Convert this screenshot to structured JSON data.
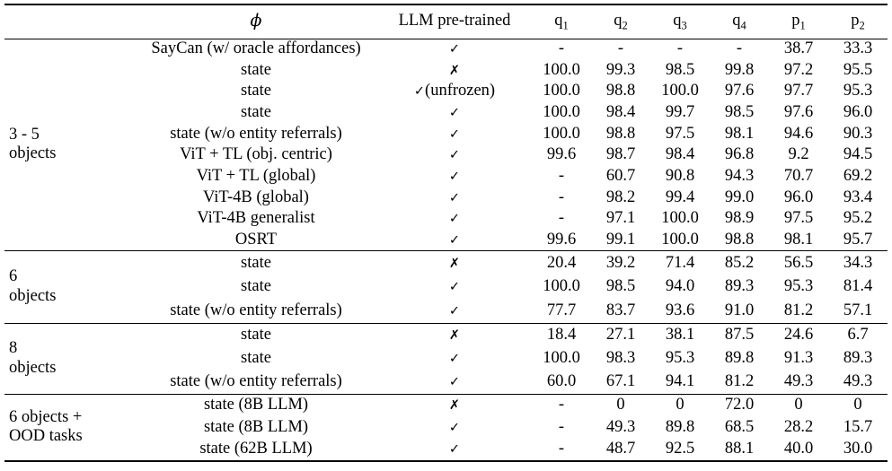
{
  "page": {
    "background": "#ffffff",
    "text_color": "#000000",
    "rule_color": "#000000"
  },
  "table": {
    "header": {
      "group": "",
      "phi": "ϕ",
      "llm": "LLM pre-trained",
      "metrics": [
        {
          "base": "q",
          "sub": "1"
        },
        {
          "base": "q",
          "sub": "2"
        },
        {
          "base": "q",
          "sub": "3"
        },
        {
          "base": "q",
          "sub": "4"
        },
        {
          "base": "p",
          "sub": "1"
        },
        {
          "base": "p",
          "sub": "2"
        }
      ]
    },
    "marks": {
      "check": "✓",
      "cross": "✗"
    },
    "groups": [
      {
        "label_lines": [
          "3 - 5",
          "objects"
        ],
        "rows": [
          {
            "phi": "SayCan (w/ oracle affordances)",
            "llm": "✓",
            "values": [
              "-",
              "-",
              "-",
              "-",
              "38.7",
              "33.3"
            ]
          },
          {
            "phi": "state",
            "llm": "✗",
            "values": [
              "100.0",
              "99.3",
              "98.5",
              "99.8",
              "97.2",
              "95.5"
            ]
          },
          {
            "phi": "state",
            "llm": "✓(unfrozen)",
            "values": [
              "100.0",
              "98.8",
              "100.0",
              "97.6",
              "97.7",
              "95.3"
            ]
          },
          {
            "phi": "state",
            "llm": "✓",
            "values": [
              "100.0",
              "98.4",
              "99.7",
              "98.5",
              "97.6",
              "96.0"
            ]
          },
          {
            "phi": "state (w/o entity referrals)",
            "llm": "✓",
            "values": [
              "100.0",
              "98.8",
              "97.5",
              "98.1",
              "94.6",
              "90.3"
            ]
          },
          {
            "phi": "ViT + TL (obj. centric)",
            "llm": "✓",
            "values": [
              "99.6",
              "98.7",
              "98.4",
              "96.8",
              "9.2",
              "94.5"
            ]
          },
          {
            "phi": "ViT + TL (global)",
            "llm": "✓",
            "values": [
              "-",
              "60.7",
              "90.8",
              "94.3",
              "70.7",
              "69.2"
            ]
          },
          {
            "phi": "ViT-4B (global)",
            "llm": "✓",
            "values": [
              "-",
              "98.2",
              "99.4",
              "99.0",
              "96.0",
              "93.4"
            ]
          },
          {
            "phi": "ViT-4B generalist",
            "llm": "✓",
            "values": [
              "-",
              "97.1",
              "100.0",
              "98.9",
              "97.5",
              "95.2"
            ]
          },
          {
            "phi": "OSRT",
            "llm": "✓",
            "values": [
              "99.6",
              "99.1",
              "100.0",
              "98.8",
              "98.1",
              "95.7"
            ]
          }
        ]
      },
      {
        "label_lines": [
          "6",
          "objects"
        ],
        "rows": [
          {
            "phi": "state",
            "llm": "✗",
            "values": [
              "20.4",
              "39.2",
              "71.4",
              "85.2",
              "56.5",
              "34.3"
            ]
          },
          {
            "phi": "state",
            "llm": "✓",
            "values": [
              "100.0",
              "98.5",
              "94.0",
              "89.3",
              "95.3",
              "81.4"
            ]
          },
          {
            "phi": "state (w/o entity referrals)",
            "llm": "✓",
            "values": [
              "77.7",
              "83.7",
              "93.6",
              "91.0",
              "81.2",
              "57.1"
            ]
          }
        ]
      },
      {
        "label_lines": [
          "8",
          "objects"
        ],
        "rows": [
          {
            "phi": "state",
            "llm": "✗",
            "values": [
              "18.4",
              "27.1",
              "38.1",
              "87.5",
              "24.6",
              "6.7"
            ]
          },
          {
            "phi": "state",
            "llm": "✓",
            "values": [
              "100.0",
              "98.3",
              "95.3",
              "89.8",
              "91.3",
              "89.3"
            ]
          },
          {
            "phi": "state (w/o entity referrals)",
            "llm": "✓",
            "values": [
              "60.0",
              "67.1",
              "94.1",
              "81.2",
              "49.3",
              "49.3"
            ]
          }
        ]
      },
      {
        "label_lines": [
          "6 objects +",
          "OOD tasks"
        ],
        "rows": [
          {
            "phi": "state (8B LLM)",
            "llm": "✗",
            "values": [
              "-",
              "0",
              "0",
              "72.0",
              "0",
              "0"
            ]
          },
          {
            "phi": "state (8B LLM)",
            "llm": "✓",
            "values": [
              "-",
              "49.3",
              "89.8",
              "68.5",
              "28.2",
              "15.7"
            ]
          },
          {
            "phi": "state (62B LLM)",
            "llm": "✓",
            "values": [
              "-",
              "48.7",
              "92.5",
              "88.1",
              "40.0",
              "30.0"
            ]
          }
        ]
      }
    ]
  }
}
